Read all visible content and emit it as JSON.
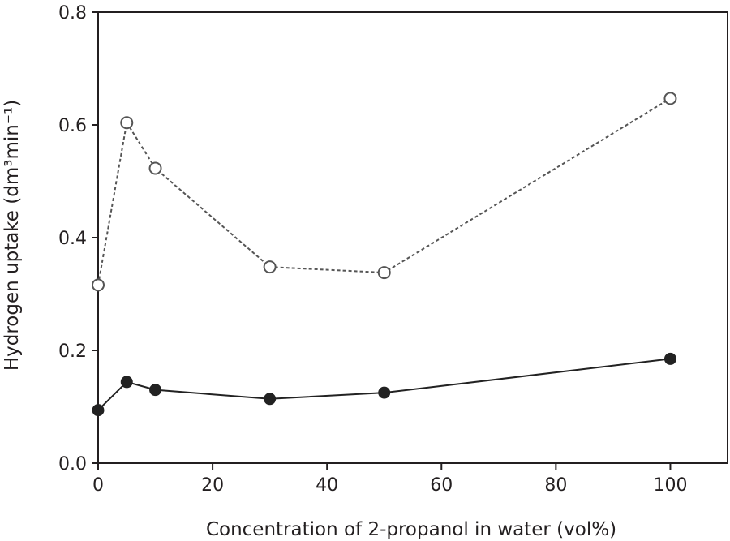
{
  "chart_data": {
    "type": "line",
    "title": "",
    "xlabel": "Concentration of 2-propanol in water (vol%)",
    "ylabel": "Hydrogen uptake (dm³min⁻¹)",
    "xlim": [
      0,
      110
    ],
    "ylim": [
      0,
      0.8
    ],
    "x_ticks": [
      0,
      20,
      40,
      60,
      80,
      100
    ],
    "x_tick_labels": [
      "0",
      "20",
      "40",
      "60",
      "80",
      "100"
    ],
    "y_ticks": [
      0,
      0.2,
      0.4,
      0.6,
      0.8
    ],
    "y_tick_labels": [
      "0.0",
      "0.2",
      "0.4",
      "0.6",
      "0.8"
    ],
    "series": [
      {
        "name": "open-circles",
        "marker": "open-circle",
        "line": "dashed",
        "color": "#555555",
        "x": [
          0,
          5,
          10,
          30,
          50,
          100
        ],
        "values": [
          0.316,
          0.604,
          0.523,
          0.348,
          0.338,
          0.647
        ]
      },
      {
        "name": "filled-circles",
        "marker": "filled-circle",
        "line": "solid",
        "color": "#222222",
        "x": [
          0,
          5,
          10,
          30,
          50,
          100
        ],
        "values": [
          0.094,
          0.144,
          0.13,
          0.114,
          0.125,
          0.185
        ]
      }
    ]
  }
}
